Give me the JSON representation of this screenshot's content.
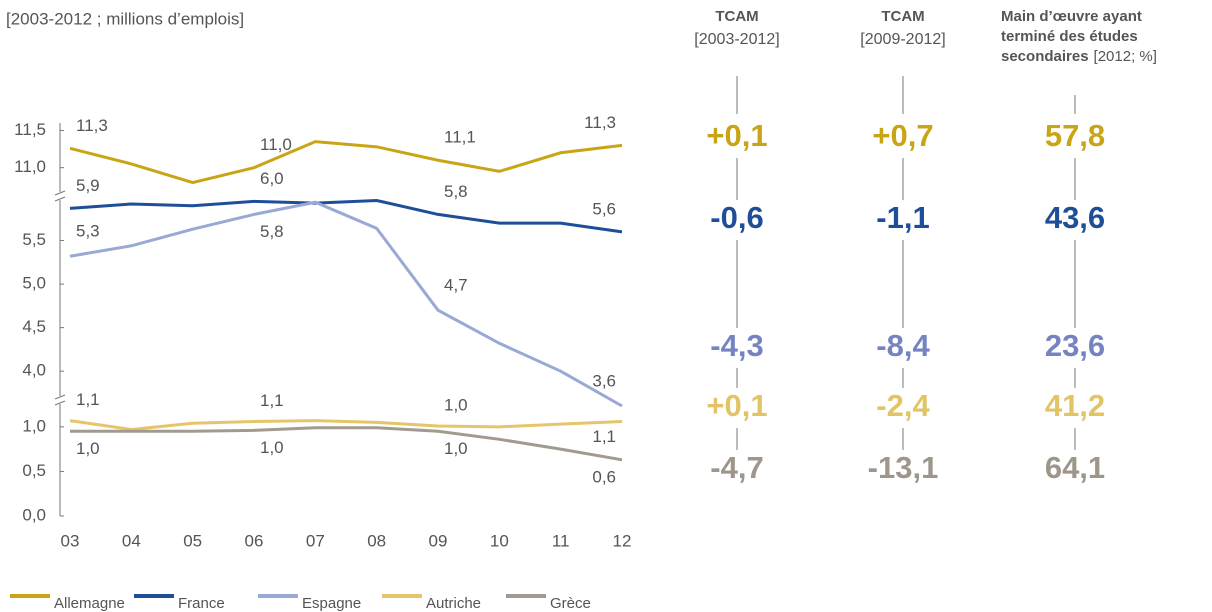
{
  "chart_data": {
    "type": "line",
    "subtitle": "[2003-2012 ; millions d’emplois]",
    "categories": [
      "03",
      "04",
      "05",
      "06",
      "07",
      "08",
      "09",
      "10",
      "11",
      "12"
    ],
    "ysegments": [
      {
        "ylim": [
          10.7,
          11.6
        ],
        "yticks": [
          {
            "value": 11.5,
            "label": "11,5"
          },
          {
            "value": 11.0,
            "label": "11,0"
          }
        ]
      },
      {
        "ylim": [
          3.6,
          6.0
        ],
        "yticks": [
          {
            "value": 5.5,
            "label": "5,5"
          },
          {
            "value": 5.0,
            "label": "5,0"
          },
          {
            "value": 4.5,
            "label": "4,5"
          },
          {
            "value": 4.0,
            "label": "4,0"
          }
        ]
      },
      {
        "ylim": [
          0,
          1.2
        ],
        "yticks": [
          {
            "value": 1.0,
            "label": "1,0"
          },
          {
            "value": 0.5,
            "label": "0,5"
          },
          {
            "value": 0.0,
            "label": "0,0"
          }
        ]
      }
    ],
    "series": [
      {
        "name": "Allemagne",
        "color": "#c9a516",
        "segment": 0,
        "values": [
          11.26,
          11.05,
          10.8,
          11.0,
          11.35,
          11.28,
          11.1,
          10.95,
          11.2,
          11.3
        ],
        "value_labels": [
          "11,3",
          null,
          null,
          "11,0",
          null,
          null,
          "11,1",
          null,
          null,
          "11,3"
        ]
      },
      {
        "name": "France",
        "color": "#1f4e99",
        "segment": 1,
        "values": [
          5.87,
          5.92,
          5.9,
          5.95,
          5.93,
          5.96,
          5.8,
          5.7,
          5.7,
          5.6
        ],
        "value_labels": [
          "5,9",
          null,
          null,
          "6,0",
          null,
          null,
          "5,8",
          null,
          null,
          "5,6"
        ]
      },
      {
        "name": "Espagne",
        "color": "#99a8d4",
        "segment": 1,
        "values": [
          5.32,
          5.44,
          5.63,
          5.8,
          5.94,
          5.64,
          4.7,
          4.32,
          4.0,
          3.6
        ],
        "value_labels": [
          "5,3",
          null,
          null,
          "5,8",
          null,
          null,
          "4,7",
          null,
          null,
          "3,6"
        ]
      },
      {
        "name": "Autriche",
        "color": "#e6c56a",
        "segment": 2,
        "values": [
          1.07,
          0.97,
          1.04,
          1.06,
          1.07,
          1.05,
          1.01,
          1.0,
          1.03,
          1.06
        ],
        "value_labels": [
          "1,1",
          null,
          null,
          "1,1",
          null,
          null,
          "1,0",
          null,
          null,
          "1,1"
        ]
      },
      {
        "name": "Grèce",
        "color": "#a39a8f",
        "segment": 2,
        "values": [
          0.95,
          0.95,
          0.95,
          0.96,
          0.99,
          0.99,
          0.95,
          0.86,
          0.75,
          0.63
        ],
        "value_labels": [
          "1,0",
          null,
          null,
          "1,0",
          null,
          null,
          "1,0",
          null,
          null,
          "0,6"
        ]
      }
    ]
  },
  "table": {
    "columns": [
      {
        "title": "TCAM",
        "subtitle": "[2003-2012]"
      },
      {
        "title": "TCAM",
        "subtitle": "[2009-2012]"
      },
      {
        "title": "Main d’œuvre ayant terminé des études secondaires",
        "subtitle": "[2012; %]"
      }
    ],
    "rows": [
      [
        "+0,1",
        "+0,7",
        "57,8"
      ],
      [
        "-0,6",
        "-1,1",
        "43,6"
      ],
      [
        "-4,3",
        "-8,4",
        "23,6"
      ],
      [
        "+0,1",
        "-2,4",
        "41,2"
      ],
      [
        "-4,7",
        "-13,1",
        "64,1"
      ]
    ]
  }
}
